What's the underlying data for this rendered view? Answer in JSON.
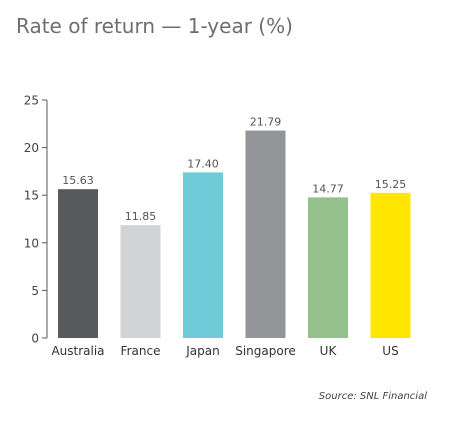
{
  "title": "Rate of return — 1-year (%)",
  "source": "Source: SNL Financial",
  "chart_data": {
    "type": "bar",
    "title": "Rate of return — 1-year (%)",
    "categories": [
      "Australia",
      "France",
      "Japan",
      "Singapore",
      "UK",
      "US"
    ],
    "values": [
      15.63,
      11.85,
      17.4,
      21.79,
      14.77,
      15.25
    ],
    "value_labels": [
      "15.63",
      "11.85",
      "17.40",
      "21.79",
      "14.77",
      "15.25"
    ],
    "colors": [
      "#58595b",
      "#d1d3d4",
      "#6ecbd8",
      "#939598",
      "#95c08c",
      "#ffe600"
    ],
    "yticks": [
      0,
      5,
      10,
      15,
      20,
      25
    ],
    "ylim": [
      0,
      25
    ],
    "xlabel": "",
    "ylabel": "",
    "grid": false,
    "legend": "none"
  }
}
